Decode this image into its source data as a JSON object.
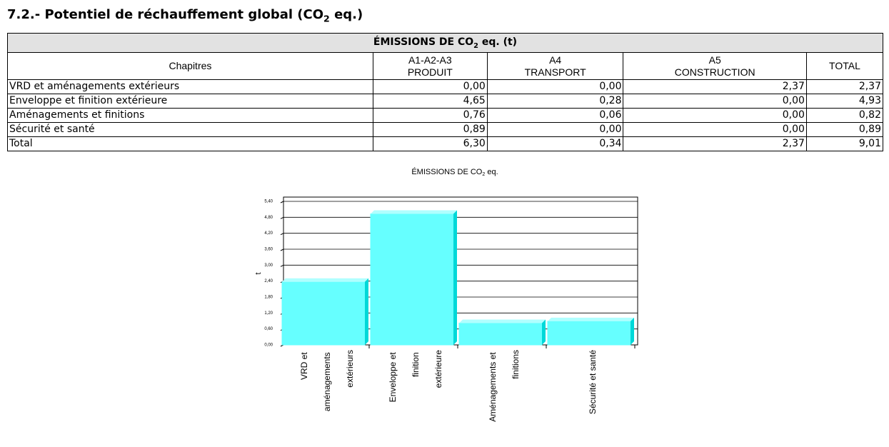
{
  "heading": {
    "text": "7.2.- Potentiel de réchauffement global (CO",
    "subscript": "2",
    "suffix": "eq.)"
  },
  "table": {
    "title": {
      "text": "ÉMISSIONS DE CO",
      "subscript": "2",
      "suffix": "eq. (t)"
    },
    "columns": [
      [
        "Chapitres"
      ],
      [
        "A1-A2-A3",
        "PRODUIT"
      ],
      [
        "A4",
        "TRANSPORT"
      ],
      [
        "A5",
        "CONSTRUCTION"
      ],
      [
        "TOTAL"
      ]
    ],
    "rows": [
      [
        "VRD et aménagements extérieurs",
        "0,00",
        "0,00",
        "2,37",
        "2,37"
      ],
      [
        "Enveloppe et finition extérieure",
        "4,65",
        "0,28",
        "0,00",
        "4,93"
      ],
      [
        "Aménagements et finitions",
        "0,76",
        "0,06",
        "0,00",
        "0,82"
      ],
      [
        "Sécurité et santé",
        "0,89",
        "0,00",
        "0,00",
        "0,89"
      ],
      [
        "Total",
        "6,30",
        "0,34",
        "2,37",
        "9,01"
      ]
    ]
  },
  "chart_data": {
    "type": "bar",
    "title": "ÉMISSIONS DE CO",
    "title_subscript": "2",
    "title_suffix": "eq.",
    "y_label": "t",
    "categories": [
      "VRD et aménagements extérieurs",
      "Enveloppe et finition extérieure",
      "Aménagements et finitions",
      "Sécurité et santé"
    ],
    "values": [
      2.37,
      4.93,
      0.82,
      0.89
    ],
    "color": "#66ffff",
    "ylim": [
      0,
      5.4
    ],
    "yticks": [
      {
        "value": 0,
        "label": "0,00"
      },
      {
        "value": 0.6,
        "label": "0,60"
      },
      {
        "value": 1.2,
        "label": "1,20"
      },
      {
        "value": 1.8,
        "label": "1,80"
      },
      {
        "value": 2.4,
        "label": "2,40"
      },
      {
        "value": 3.0,
        "label": "3,00"
      },
      {
        "value": 3.6,
        "label": "3,60"
      },
      {
        "value": 4.2,
        "label": "4,20"
      },
      {
        "value": 4.8,
        "label": "4,80"
      },
      {
        "value": 5.4,
        "label": "5,40"
      }
    ],
    "grid": true
  }
}
